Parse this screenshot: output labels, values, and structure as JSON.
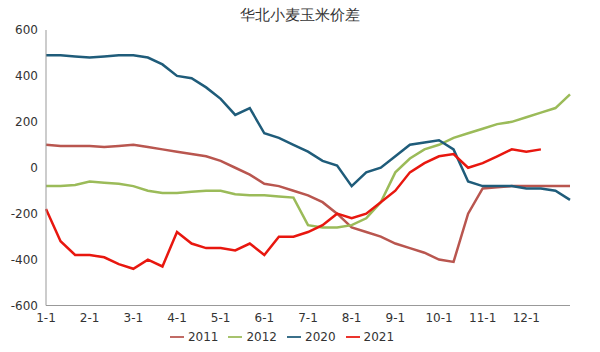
{
  "chart_data": {
    "type": "line",
    "title": "华北小麦玉米价差",
    "categories": [
      "1-1",
      null,
      null,
      "2-1",
      null,
      null,
      "3-1",
      null,
      null,
      "4-1",
      null,
      null,
      "5-1",
      null,
      null,
      "6-1",
      null,
      null,
      "7-1",
      null,
      null,
      "8-1",
      null,
      null,
      "9-1",
      null,
      null,
      "10-1",
      null,
      null,
      "11-1",
      null,
      null,
      "12-1",
      null,
      null,
      null
    ],
    "series": [
      {
        "name": "2011",
        "color": "#b9564f",
        "values": [
          100,
          95,
          95,
          95,
          90,
          95,
          100,
          90,
          80,
          70,
          60,
          50,
          30,
          0,
          -30,
          -70,
          -80,
          -100,
          -120,
          -150,
          -200,
          -260,
          -280,
          -300,
          -330,
          -350,
          -370,
          -400,
          -410,
          -200,
          -90,
          -85,
          -80,
          -80,
          -80,
          -80,
          -80
        ]
      },
      {
        "name": "2012",
        "color": "#9bbb59",
        "values": [
          -80,
          -80,
          -75,
          -60,
          -65,
          -70,
          -80,
          -100,
          -110,
          -110,
          -105,
          -100,
          -100,
          -115,
          -120,
          -120,
          -125,
          -130,
          -250,
          -260,
          -260,
          -250,
          -220,
          -150,
          -20,
          40,
          80,
          100,
          130,
          150,
          170,
          190,
          200,
          220,
          240,
          260,
          320
        ]
      },
      {
        "name": "2020",
        "color": "#1f5c7a",
        "values": [
          490,
          490,
          485,
          480,
          485,
          490,
          490,
          480,
          450,
          400,
          390,
          350,
          300,
          230,
          260,
          150,
          130,
          100,
          70,
          30,
          10,
          -80,
          -20,
          0,
          50,
          100,
          110,
          120,
          80,
          -60,
          -80,
          -80,
          -80,
          -90,
          -90,
          -100,
          -140
        ]
      },
      {
        "name": "2021",
        "color": "#e8170f",
        "values": [
          -180,
          -320,
          -380,
          -380,
          -390,
          -420,
          -440,
          -400,
          -430,
          -280,
          -330,
          -350,
          -350,
          -360,
          -330,
          -380,
          -300,
          -300,
          -280,
          -250,
          -200,
          -220,
          -200,
          -150,
          -100,
          -20,
          20,
          50,
          60,
          0,
          20,
          50,
          80,
          70,
          80,
          null,
          null
        ]
      }
    ],
    "ylim": [
      -600,
      600
    ],
    "yticks": [
      -600,
      -400,
      -200,
      0,
      200,
      400,
      600
    ],
    "grid": false,
    "legend": "bottom"
  }
}
